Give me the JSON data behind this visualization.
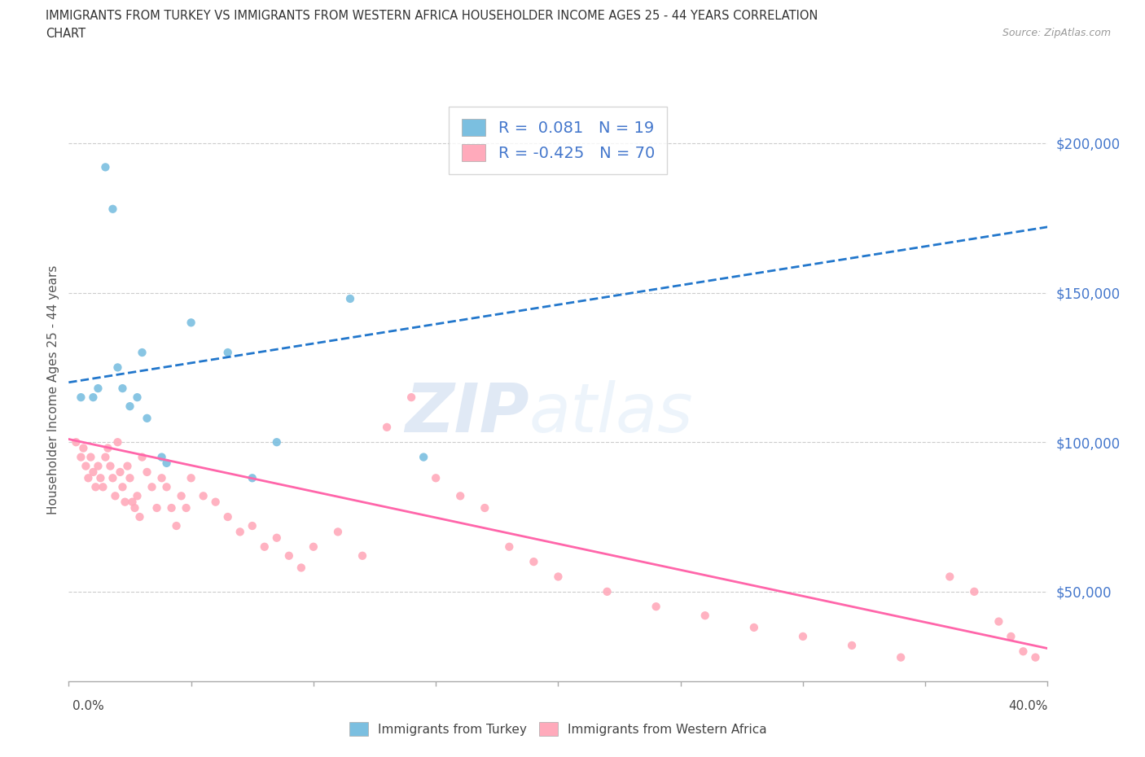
{
  "title_line1": "IMMIGRANTS FROM TURKEY VS IMMIGRANTS FROM WESTERN AFRICA HOUSEHOLDER INCOME AGES 25 - 44 YEARS CORRELATION",
  "title_line2": "CHART",
  "source_text": "Source: ZipAtlas.com",
  "ylabel": "Householder Income Ages 25 - 44 years",
  "watermark_bold": "ZIP",
  "watermark_light": "atlas",
  "xlim": [
    0.0,
    0.4
  ],
  "ylim": [
    20000,
    215000
  ],
  "y_ticks": [
    50000,
    100000,
    150000,
    200000
  ],
  "y_tick_labels": [
    "$50,000",
    "$100,000",
    "$150,000",
    "$200,000"
  ],
  "x_ticks": [
    0.0,
    0.05,
    0.1,
    0.15,
    0.2,
    0.25,
    0.3,
    0.35,
    0.4
  ],
  "turkey_R": "0.081",
  "turkey_N": "19",
  "west_africa_R": "-0.425",
  "west_africa_N": "70",
  "turkey_scatter_color": "#7bbfe0",
  "west_africa_scatter_color": "#ffaabb",
  "turkey_line_color": "#2277cc",
  "west_africa_line_color": "#ff66aa",
  "turkey_line_intercept": 120000,
  "turkey_line_slope": 130000,
  "west_africa_line_intercept": 101000,
  "west_africa_line_slope": -175000,
  "turkey_x": [
    0.005,
    0.01,
    0.012,
    0.015,
    0.018,
    0.02,
    0.022,
    0.025,
    0.028,
    0.03,
    0.032,
    0.038,
    0.04,
    0.05,
    0.065,
    0.075,
    0.085,
    0.115,
    0.145
  ],
  "turkey_y": [
    115000,
    115000,
    118000,
    192000,
    178000,
    125000,
    118000,
    112000,
    115000,
    130000,
    108000,
    95000,
    93000,
    140000,
    130000,
    88000,
    100000,
    148000,
    95000
  ],
  "west_africa_x": [
    0.003,
    0.005,
    0.006,
    0.007,
    0.008,
    0.009,
    0.01,
    0.011,
    0.012,
    0.013,
    0.014,
    0.015,
    0.016,
    0.017,
    0.018,
    0.019,
    0.02,
    0.021,
    0.022,
    0.023,
    0.024,
    0.025,
    0.026,
    0.027,
    0.028,
    0.029,
    0.03,
    0.032,
    0.034,
    0.036,
    0.038,
    0.04,
    0.042,
    0.044,
    0.046,
    0.048,
    0.05,
    0.055,
    0.06,
    0.065,
    0.07,
    0.075,
    0.08,
    0.085,
    0.09,
    0.095,
    0.1,
    0.11,
    0.12,
    0.13,
    0.14,
    0.15,
    0.16,
    0.17,
    0.18,
    0.19,
    0.2,
    0.22,
    0.24,
    0.26,
    0.28,
    0.3,
    0.32,
    0.34,
    0.36,
    0.37,
    0.38,
    0.385,
    0.39,
    0.395
  ],
  "west_africa_y": [
    100000,
    95000,
    98000,
    92000,
    88000,
    95000,
    90000,
    85000,
    92000,
    88000,
    85000,
    95000,
    98000,
    92000,
    88000,
    82000,
    100000,
    90000,
    85000,
    80000,
    92000,
    88000,
    80000,
    78000,
    82000,
    75000,
    95000,
    90000,
    85000,
    78000,
    88000,
    85000,
    78000,
    72000,
    82000,
    78000,
    88000,
    82000,
    80000,
    75000,
    70000,
    72000,
    65000,
    68000,
    62000,
    58000,
    65000,
    70000,
    62000,
    105000,
    115000,
    88000,
    82000,
    78000,
    65000,
    60000,
    55000,
    50000,
    45000,
    42000,
    38000,
    35000,
    32000,
    28000,
    55000,
    50000,
    40000,
    35000,
    30000,
    28000
  ]
}
